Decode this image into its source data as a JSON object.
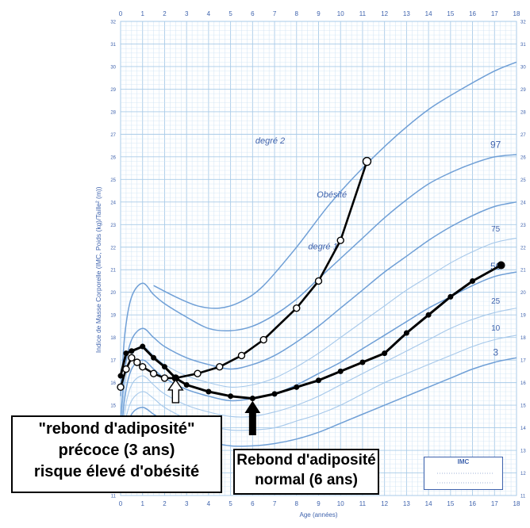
{
  "colors": {
    "grid_minor": "#cfe3f4",
    "grid_major": "#a9cbe8",
    "curve": "#6f9fd6",
    "curve_light": "#a6c8ea",
    "text_blue": "#3f63ad",
    "data_line": "#000000",
    "marker_fill": "#ffffff"
  },
  "chart_data": {
    "type": "line",
    "xlabel": "Age (années)",
    "ylabel": "Indice de Masse Corporelle (IMC, Poids (kg)/Taille² (m))",
    "xlim": [
      0,
      18
    ],
    "ylim": [
      11,
      32
    ],
    "x_ticks_top": [
      "0",
      "1",
      "2",
      "3",
      "4",
      "5",
      "6",
      "7",
      "8",
      "9",
      "10",
      "11",
      "12",
      "13",
      "14",
      "15",
      "16",
      "17",
      "18"
    ],
    "x_ticks_bottom": [
      "0",
      "1",
      "2",
      "3",
      "4",
      "5",
      "6",
      "7",
      "8",
      "9",
      "10",
      "11",
      "12",
      "13",
      "14",
      "15",
      "16",
      "17",
      "18"
    ],
    "y_ticks_left": [
      "11",
      "12",
      "13",
      "14",
      "15",
      "16",
      "17",
      "18",
      "19",
      "20",
      "21",
      "22",
      "23",
      "24",
      "25",
      "26",
      "27",
      "28",
      "29",
      "30",
      "31",
      "32"
    ],
    "y_ticks_right": [
      "11",
      "12",
      "13",
      "14",
      "15",
      "16",
      "17",
      "18",
      "19",
      "20",
      "21",
      "22",
      "23",
      "24",
      "25",
      "26",
      "27",
      "28",
      "29",
      "30",
      "31",
      "32"
    ],
    "reference_curves": [
      {
        "name": "degré 2",
        "x": [
          1.5,
          2.5,
          3.5,
          4.5,
          5.5,
          6.5,
          8,
          9.5,
          11,
          12.5,
          14,
          15.5,
          17,
          18
        ],
        "y": [
          20.3,
          19.8,
          19.4,
          19.3,
          19.6,
          20.3,
          22.0,
          23.9,
          25.5,
          26.9,
          28.1,
          29.0,
          29.8,
          30.2
        ]
      },
      {
        "name": "97",
        "x": [
          0,
          0.2,
          0.5,
          1,
          1.5,
          2,
          3,
          4,
          5,
          6,
          7,
          8,
          9,
          10,
          11,
          12,
          13,
          14,
          15,
          16,
          17,
          18
        ],
        "y": [
          15.4,
          18.2,
          19.8,
          20.4,
          19.9,
          19.5,
          18.9,
          18.4,
          18.3,
          18.5,
          19.0,
          19.7,
          20.6,
          21.5,
          22.4,
          23.3,
          24.1,
          24.8,
          25.3,
          25.7,
          26.0,
          26.1
        ]
      },
      {
        "name": "degré 1",
        "x": [
          0,
          0.2,
          0.5,
          1,
          1.5,
          2,
          3,
          4,
          5,
          6,
          7,
          8,
          9,
          10,
          11,
          12,
          13,
          14,
          15,
          16,
          17,
          18
        ],
        "y": [
          14.3,
          16.6,
          17.9,
          18.4,
          18.0,
          17.6,
          17.1,
          16.8,
          16.6,
          16.8,
          17.2,
          17.8,
          18.5,
          19.3,
          20.1,
          20.9,
          21.6,
          22.3,
          22.9,
          23.4,
          23.8,
          24.0
        ]
      },
      {
        "name": "75",
        "x": [
          0,
          0.2,
          0.5,
          1,
          1.5,
          2,
          3,
          4,
          5,
          6,
          7,
          8,
          9,
          10,
          11,
          12,
          13,
          14,
          15,
          16,
          17,
          18
        ],
        "y": [
          13.9,
          16.0,
          17.2,
          17.6,
          17.2,
          16.8,
          16.3,
          16.0,
          15.8,
          15.9,
          16.2,
          16.7,
          17.3,
          18.0,
          18.7,
          19.4,
          20.1,
          20.7,
          21.3,
          21.8,
          22.2,
          22.4
        ]
      },
      {
        "name": "50",
        "x": [
          0,
          0.2,
          0.5,
          1,
          1.5,
          2,
          3,
          4,
          5,
          6,
          7,
          8,
          9,
          10,
          11,
          12,
          13,
          14,
          15,
          16,
          17,
          18
        ],
        "y": [
          13.4,
          15.4,
          16.6,
          17.0,
          16.6,
          16.2,
          15.7,
          15.4,
          15.2,
          15.3,
          15.5,
          15.9,
          16.4,
          16.9,
          17.5,
          18.1,
          18.7,
          19.3,
          19.8,
          20.3,
          20.7,
          20.9
        ]
      },
      {
        "name": "25",
        "x": [
          0,
          0.2,
          0.5,
          1,
          1.5,
          2,
          3,
          4,
          5,
          6,
          7,
          8,
          9,
          10,
          11,
          12,
          13,
          14,
          15,
          16,
          17,
          18
        ],
        "y": [
          12.9,
          14.8,
          15.9,
          16.3,
          15.9,
          15.5,
          15.0,
          14.7,
          14.5,
          14.5,
          14.7,
          15.0,
          15.4,
          15.9,
          16.4,
          16.9,
          17.4,
          17.9,
          18.4,
          18.8,
          19.1,
          19.3
        ]
      },
      {
        "name": "10",
        "x": [
          0,
          0.2,
          0.5,
          1,
          1.5,
          2,
          3,
          4,
          5,
          6,
          7,
          8,
          9,
          10,
          11,
          12,
          13,
          14,
          15,
          16,
          17,
          18
        ],
        "y": [
          12.5,
          14.2,
          15.2,
          15.6,
          15.3,
          14.9,
          14.4,
          14.1,
          13.9,
          13.9,
          14.0,
          14.3,
          14.6,
          15.0,
          15.5,
          16.0,
          16.4,
          16.8,
          17.2,
          17.6,
          17.9,
          18.1
        ]
      },
      {
        "name": "3",
        "x": [
          0,
          0.2,
          0.5,
          1,
          1.5,
          2,
          3,
          4,
          5,
          6,
          7,
          8,
          9,
          10,
          11,
          12,
          13,
          14,
          15,
          16,
          17,
          18
        ],
        "y": [
          12.2,
          13.6,
          14.6,
          14.9,
          14.6,
          14.3,
          13.8,
          13.4,
          13.2,
          13.2,
          13.3,
          13.5,
          13.8,
          14.2,
          14.6,
          15.0,
          15.4,
          15.8,
          16.2,
          16.6,
          16.9,
          17.1
        ]
      }
    ],
    "series": [
      {
        "x": [
          0,
          0.25,
          0.5,
          0.75,
          1,
          1.5,
          2,
          2.5,
          3.5,
          4.5,
          5.5,
          6.5,
          8,
          9,
          10,
          11.2
        ],
        "y": [
          15.8,
          16.6,
          17.1,
          16.9,
          16.7,
          16.4,
          16.2,
          16.2,
          16.4,
          16.7,
          17.2,
          17.9,
          19.3,
          20.5,
          22.3,
          25.8
        ]
      },
      {
        "x": [
          0,
          0.25,
          0.5,
          1,
          1.5,
          2,
          2.5,
          3,
          4,
          5,
          6,
          7,
          8,
          9,
          10,
          11,
          12,
          13,
          14,
          15,
          16,
          17.3
        ],
        "y": [
          16.3,
          17.3,
          17.4,
          17.6,
          17.1,
          16.7,
          16.2,
          15.9,
          15.6,
          15.4,
          15.3,
          15.5,
          15.8,
          16.1,
          16.5,
          16.9,
          17.3,
          18.2,
          19.0,
          19.8,
          20.5,
          21.2
        ]
      }
    ],
    "annotations": {
      "degre2": "degré 2",
      "obesite": "Obésité",
      "degre1": "degré 1",
      "p97": "97",
      "p75": "75",
      "p50": "50",
      "p25": "25",
      "p10": "10",
      "p3": "3",
      "callout_early": [
        "\"rebond d'adiposité\"",
        "précoce (3 ans)",
        "risque élevé d'obésité"
      ],
      "callout_normal": [
        "Rebond d'adiposité",
        "normal (6 ans)"
      ],
      "imc_box_title": "IMC"
    }
  }
}
